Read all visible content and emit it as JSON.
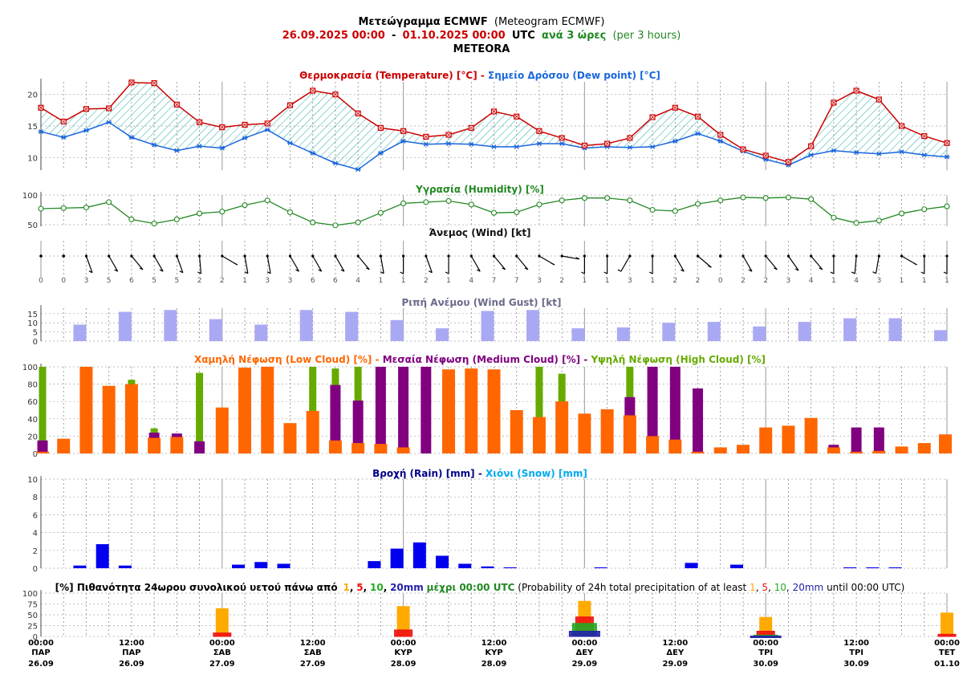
{
  "header": {
    "line1_bold": "Μετεώγραμμα ECMWF",
    "line1_normal": "(Meteogram ECMWF)",
    "line2_start": "26.09.2025 00:00",
    "line2_dash": "-",
    "line2_end": "01.10.2025 00:00",
    "line2_utc": "UTC",
    "line2_step": "ανά 3 ώρες",
    "line2_step_en": "(per 3 hours)",
    "location": "METEORA"
  },
  "colors": {
    "temp": "#cc0000",
    "dew": "#1a66dd",
    "hum": "#228822",
    "gust": "#a9a9f3",
    "low": "#ff6600",
    "med": "#800080",
    "high": "#66aa00",
    "rain": "#0000ee",
    "snow": "#00aaee",
    "p1": "#ffaa00",
    "p5": "#ee1111",
    "p10": "#22aa22",
    "p20": "#2222aa"
  },
  "chart_data": [
    {
      "type": "line",
      "title_parts": [
        "Θερμοκρασία (Temperature) [°C]",
        " - ",
        "Σημείο Δρόσου (Dew point) [°C]"
      ],
      "ylim": [
        8,
        22
      ],
      "yticks": [
        10,
        15,
        20
      ],
      "series": [
        {
          "name": "Θερμοκρασία (Temperature) [°C]",
          "values": [
            17.9,
            15.7,
            17.7,
            17.8,
            21.9,
            21.8,
            18.4,
            15.6,
            14.8,
            15.2,
            15.4,
            18.3,
            20.6,
            20.0,
            17.0,
            14.7,
            14.2,
            13.3,
            13.6,
            14.7,
            17.3,
            16.5,
            14.2,
            13.1,
            11.9,
            12.2,
            13.1,
            16.4,
            17.9,
            16.5,
            13.6,
            11.3,
            10.3,
            9.3,
            11.8,
            18.7,
            20.6,
            19.2,
            15.0,
            13.4,
            12.3
          ]
        },
        {
          "name": "Σημείο Δρόσου (Dew point) [°C]",
          "values": [
            14.1,
            13.2,
            14.3,
            15.6,
            13.2,
            12.0,
            11.1,
            11.8,
            11.5,
            13.1,
            14.4,
            12.3,
            10.7,
            9.1,
            8.1,
            10.7,
            12.6,
            12.1,
            12.2,
            12.1,
            11.7,
            11.7,
            12.2,
            12.2,
            11.5,
            11.7,
            11.6,
            11.7,
            12.6,
            13.8,
            12.6,
            11.0,
            9.7,
            8.8,
            10.4,
            11.1,
            10.8,
            10.6,
            10.9,
            10.4,
            10.1
          ]
        }
      ]
    },
    {
      "type": "line",
      "title": "Υγρασία (Humidity) [%]",
      "ylim": [
        40,
        100
      ],
      "yticks": [
        50,
        100
      ],
      "series": [
        {
          "name": "Υγρασία (Humidity) [%]",
          "values": [
            77,
            78,
            79,
            88,
            59,
            52,
            59,
            69,
            72,
            83,
            91,
            71,
            54,
            49,
            54,
            70,
            86,
            88,
            90,
            84,
            70,
            71,
            84,
            91,
            95,
            95,
            91,
            75,
            73,
            85,
            91,
            96,
            95,
            96,
            93,
            62,
            53,
            57,
            69,
            76,
            81
          ]
        }
      ]
    },
    {
      "type": "table",
      "title": "Άνεμος (Wind) [kt]",
      "speed": [
        0,
        0,
        3,
        5,
        6,
        5,
        5,
        2,
        2,
        1,
        3,
        3,
        6,
        6,
        4,
        1,
        1,
        2,
        1,
        4,
        7,
        7,
        3,
        2,
        1,
        1,
        3,
        1,
        2,
        2,
        0,
        2,
        2,
        3,
        4,
        1,
        4,
        3,
        1,
        1,
        1
      ],
      "dir_deg": [
        0,
        0,
        340,
        330,
        320,
        330,
        340,
        355,
        300,
        350,
        350,
        330,
        330,
        330,
        320,
        350,
        0,
        340,
        0,
        330,
        320,
        320,
        300,
        280,
        0,
        0,
        30,
        0,
        330,
        310,
        0,
        330,
        320,
        325,
        320,
        0,
        5,
        10,
        300,
        0,
        0
      ]
    },
    {
      "type": "bar",
      "title": "Ριπή Ανέμου (Wind Gust) [kt]",
      "ylim": [
        0,
        18
      ],
      "yticks": [
        0,
        5,
        10,
        15
      ],
      "x_index": [
        2,
        4,
        6,
        8,
        10,
        12,
        14,
        16,
        18,
        20,
        22,
        24,
        26,
        28,
        30,
        32,
        34,
        36,
        38,
        40
      ],
      "values": [
        9,
        16,
        17,
        12,
        9,
        17,
        16,
        11.5,
        7,
        16.5,
        17,
        7,
        7.5,
        10,
        10.5,
        8,
        10.5,
        12.5,
        12.5,
        6
      ]
    },
    {
      "type": "bar",
      "title_parts": [
        "Χαμηλή Νέφωση (Low Cloud) [%]",
        " - ",
        "Μεσαία Νέφωση (Medium Cloud) [%]",
        " - ",
        "Υψηλή Νέφωση (High Cloud) [%]"
      ],
      "ylim": [
        0,
        100
      ],
      "yticks": [
        0,
        20,
        40,
        60,
        80,
        100
      ],
      "series": [
        {
          "name": "Υψηλή Νέφωση (High Cloud) [%]",
          "values": [
            100,
            0,
            0,
            0,
            85,
            29,
            0,
            93,
            0,
            0,
            0,
            0,
            100,
            98,
            100,
            0,
            0,
            0,
            0,
            0,
            0,
            0,
            100,
            92,
            0,
            0,
            100,
            0,
            0,
            0,
            0,
            0,
            0,
            0,
            0,
            0,
            0,
            0,
            0,
            0,
            0
          ]
        },
        {
          "name": "Μεσαία Νέφωση (Medium Cloud) [%]",
          "values": [
            15,
            0,
            0,
            0,
            0,
            24,
            23,
            14,
            0,
            0,
            0,
            0,
            0,
            79,
            61,
            100,
            100,
            100,
            0,
            0,
            0,
            0,
            0,
            0,
            0,
            0,
            65,
            100,
            100,
            75,
            0,
            0,
            0,
            0,
            0,
            10,
            30,
            30,
            0,
            0,
            0
          ]
        },
        {
          "name": "Χαμηλή Νέφωση (Low Cloud) [%]",
          "values": [
            2,
            17,
            100,
            78,
            80,
            18,
            19,
            0,
            53,
            99,
            100,
            35,
            49,
            15,
            12,
            11,
            7,
            0,
            97,
            98,
            97,
            50,
            42,
            60,
            46,
            51,
            44,
            20,
            16,
            2,
            7,
            10,
            30,
            32,
            41,
            7,
            2,
            3,
            8,
            12,
            22
          ]
        }
      ]
    },
    {
      "type": "bar",
      "title_parts": [
        "Βροχή (Rain) [mm]",
        " - ",
        "Χιόνι (Snow) [mm]"
      ],
      "ylim": [
        0,
        10
      ],
      "yticks": [
        0,
        2,
        4,
        6,
        8,
        10
      ],
      "series": [
        {
          "name": "Βροχή (Rain) [mm]",
          "values": [
            0,
            0,
            0.3,
            2.7,
            0.3,
            0,
            0,
            0,
            0,
            0.4,
            0.7,
            0.5,
            0,
            0,
            0,
            0.8,
            2.2,
            2.9,
            1.4,
            0.5,
            0.2,
            0.1,
            0,
            0,
            0,
            0.1,
            0,
            0,
            0,
            0.6,
            0,
            0.4,
            0,
            0,
            0,
            0,
            0.1,
            0.1,
            0.1,
            0,
            0
          ]
        },
        {
          "name": "Χιόνι (Snow) [mm]",
          "values": [
            0,
            0,
            0,
            0,
            0,
            0,
            0,
            0,
            0,
            0,
            0,
            0,
            0,
            0,
            0,
            0,
            0,
            0,
            0,
            0,
            0,
            0,
            0,
            0,
            0,
            0,
            0,
            0,
            0,
            0,
            0,
            0,
            0,
            0,
            0,
            0,
            0,
            0,
            0,
            0,
            0
          ]
        }
      ]
    },
    {
      "type": "bar",
      "title_prefix": "[%] Πιθανότητα 24ωρου συνολικού υετού πάνω από",
      "thresholds": [
        "1",
        "5",
        "10",
        "20mm"
      ],
      "title_mid": "μέχρι 00:00 UTC",
      "title_en_prefix": "(Probability of 24h total precipitation of at least",
      "title_en_suffix": "until 00:00 UTC)",
      "sep_comma": ",",
      "ylim": [
        0,
        100
      ],
      "yticks": [
        0,
        25,
        50,
        75,
        100
      ],
      "x_index": [
        8,
        16,
        24,
        32,
        40
      ],
      "series": [
        {
          "name": "1",
          "values": [
            65,
            70,
            82,
            45,
            55
          ]
        },
        {
          "name": "5",
          "values": [
            8,
            15,
            45,
            12,
            5
          ]
        },
        {
          "name": "10",
          "values": [
            0,
            0,
            30,
            3,
            0
          ]
        },
        {
          "name": "20mm",
          "values": [
            0,
            0,
            12,
            1,
            0
          ]
        }
      ]
    }
  ],
  "x_axis": {
    "times": [
      "00:00",
      "12:00",
      "00:00",
      "12:00",
      "00:00",
      "12:00",
      "00:00",
      "12:00",
      "00:00",
      "12:00",
      "00:00"
    ],
    "days": [
      "ΠΑΡ",
      "ΠΑΡ",
      "ΣΑΒ",
      "ΣΑΒ",
      "ΚΥΡ",
      "ΚΥΡ",
      "ΔΕΥ",
      "ΔΕΥ",
      "ΤΡΙ",
      "ΤΡΙ",
      "ΤΕΤ"
    ],
    "dates": [
      "26.09",
      "26.09",
      "27.09",
      "27.09",
      "28.09",
      "28.09",
      "29.09",
      "29.09",
      "30.09",
      "30.09",
      "01.10"
    ]
  }
}
